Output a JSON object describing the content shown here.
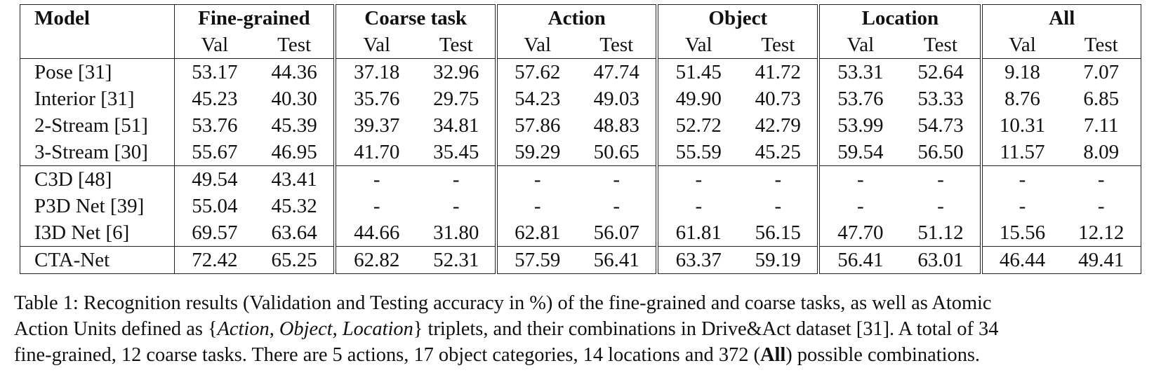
{
  "table": {
    "model_header": "Model",
    "groups": [
      "Fine-grained",
      "Coarse task",
      "Action",
      "Object",
      "Location",
      "All"
    ],
    "subheaders": [
      "Val",
      "Test"
    ],
    "rows": [
      {
        "model": "Pose [31]",
        "values": [
          "53.17",
          "44.36",
          "37.18",
          "32.96",
          "57.62",
          "47.74",
          "51.45",
          "41.72",
          "53.31",
          "52.64",
          "9.18",
          "7.07"
        ],
        "bold": []
      },
      {
        "model": "Interior [31]",
        "values": [
          "45.23",
          "40.30",
          "35.76",
          "29.75",
          "54.23",
          "49.03",
          "49.90",
          "40.73",
          "53.76",
          "53.33",
          "8.76",
          "6.85"
        ],
        "bold": []
      },
      {
        "model": "2-Stream [51]",
        "values": [
          "53.76",
          "45.39",
          "39.37",
          "34.81",
          "57.86",
          "48.83",
          "52.72",
          "42.79",
          "53.99",
          "54.73",
          "10.31",
          "7.11"
        ],
        "bold": []
      },
      {
        "model": "3-Stream [30]",
        "values": [
          "55.67",
          "46.95",
          "41.70",
          "35.45",
          "59.29",
          "50.65",
          "55.59",
          "45.25",
          "59.54",
          "56.50",
          "11.57",
          "8.09"
        ],
        "bold": [
          8
        ]
      },
      {
        "model": "C3D [48]",
        "values": [
          "49.54",
          "43.41",
          "-",
          "-",
          "-",
          "-",
          "-",
          "-",
          "-",
          "-",
          "-",
          "-"
        ],
        "bold": []
      },
      {
        "model": "P3D Net [39]",
        "values": [
          "55.04",
          "45.32",
          "-",
          "-",
          "-",
          "-",
          "-",
          "-",
          "-",
          "-",
          "-",
          "-"
        ],
        "bold": []
      },
      {
        "model": "I3D Net [6]",
        "values": [
          "69.57",
          "63.64",
          "44.66",
          "31.80",
          "62.81",
          "56.07",
          "61.81",
          "56.15",
          "47.70",
          "51.12",
          "15.56",
          "12.12"
        ],
        "bold": [
          4
        ]
      },
      {
        "model": "CTA-Net",
        "values": [
          "72.42",
          "65.25",
          "62.82",
          "52.31",
          "57.59",
          "56.41",
          "63.37",
          "59.19",
          "56.41",
          "63.01",
          "46.44",
          "49.41"
        ],
        "bold": [
          0,
          1,
          2,
          3,
          5,
          6,
          7,
          9,
          10,
          11
        ],
        "model_bold": true
      }
    ]
  },
  "caption": {
    "line1": "Table 1: Recognition results (Validation and Testing accuracy in %) of the fine-grained and coarse tasks, as well as Atomic",
    "line2_a": "Action Units defined as {",
    "line2_action": "Action",
    "line2_sep1": ", ",
    "line2_object": "Object",
    "line2_sep2": ", ",
    "line2_location": "Location",
    "line2_b": "} triplets, and their combinations in Drive&Act dataset [31]. A total of 34",
    "line3_a": "fine-grained, 12 coarse tasks. There are 5 actions, 17 object categories, 14 locations and 372 (",
    "line3_all": "All",
    "line3_b": ") possible combinations."
  }
}
